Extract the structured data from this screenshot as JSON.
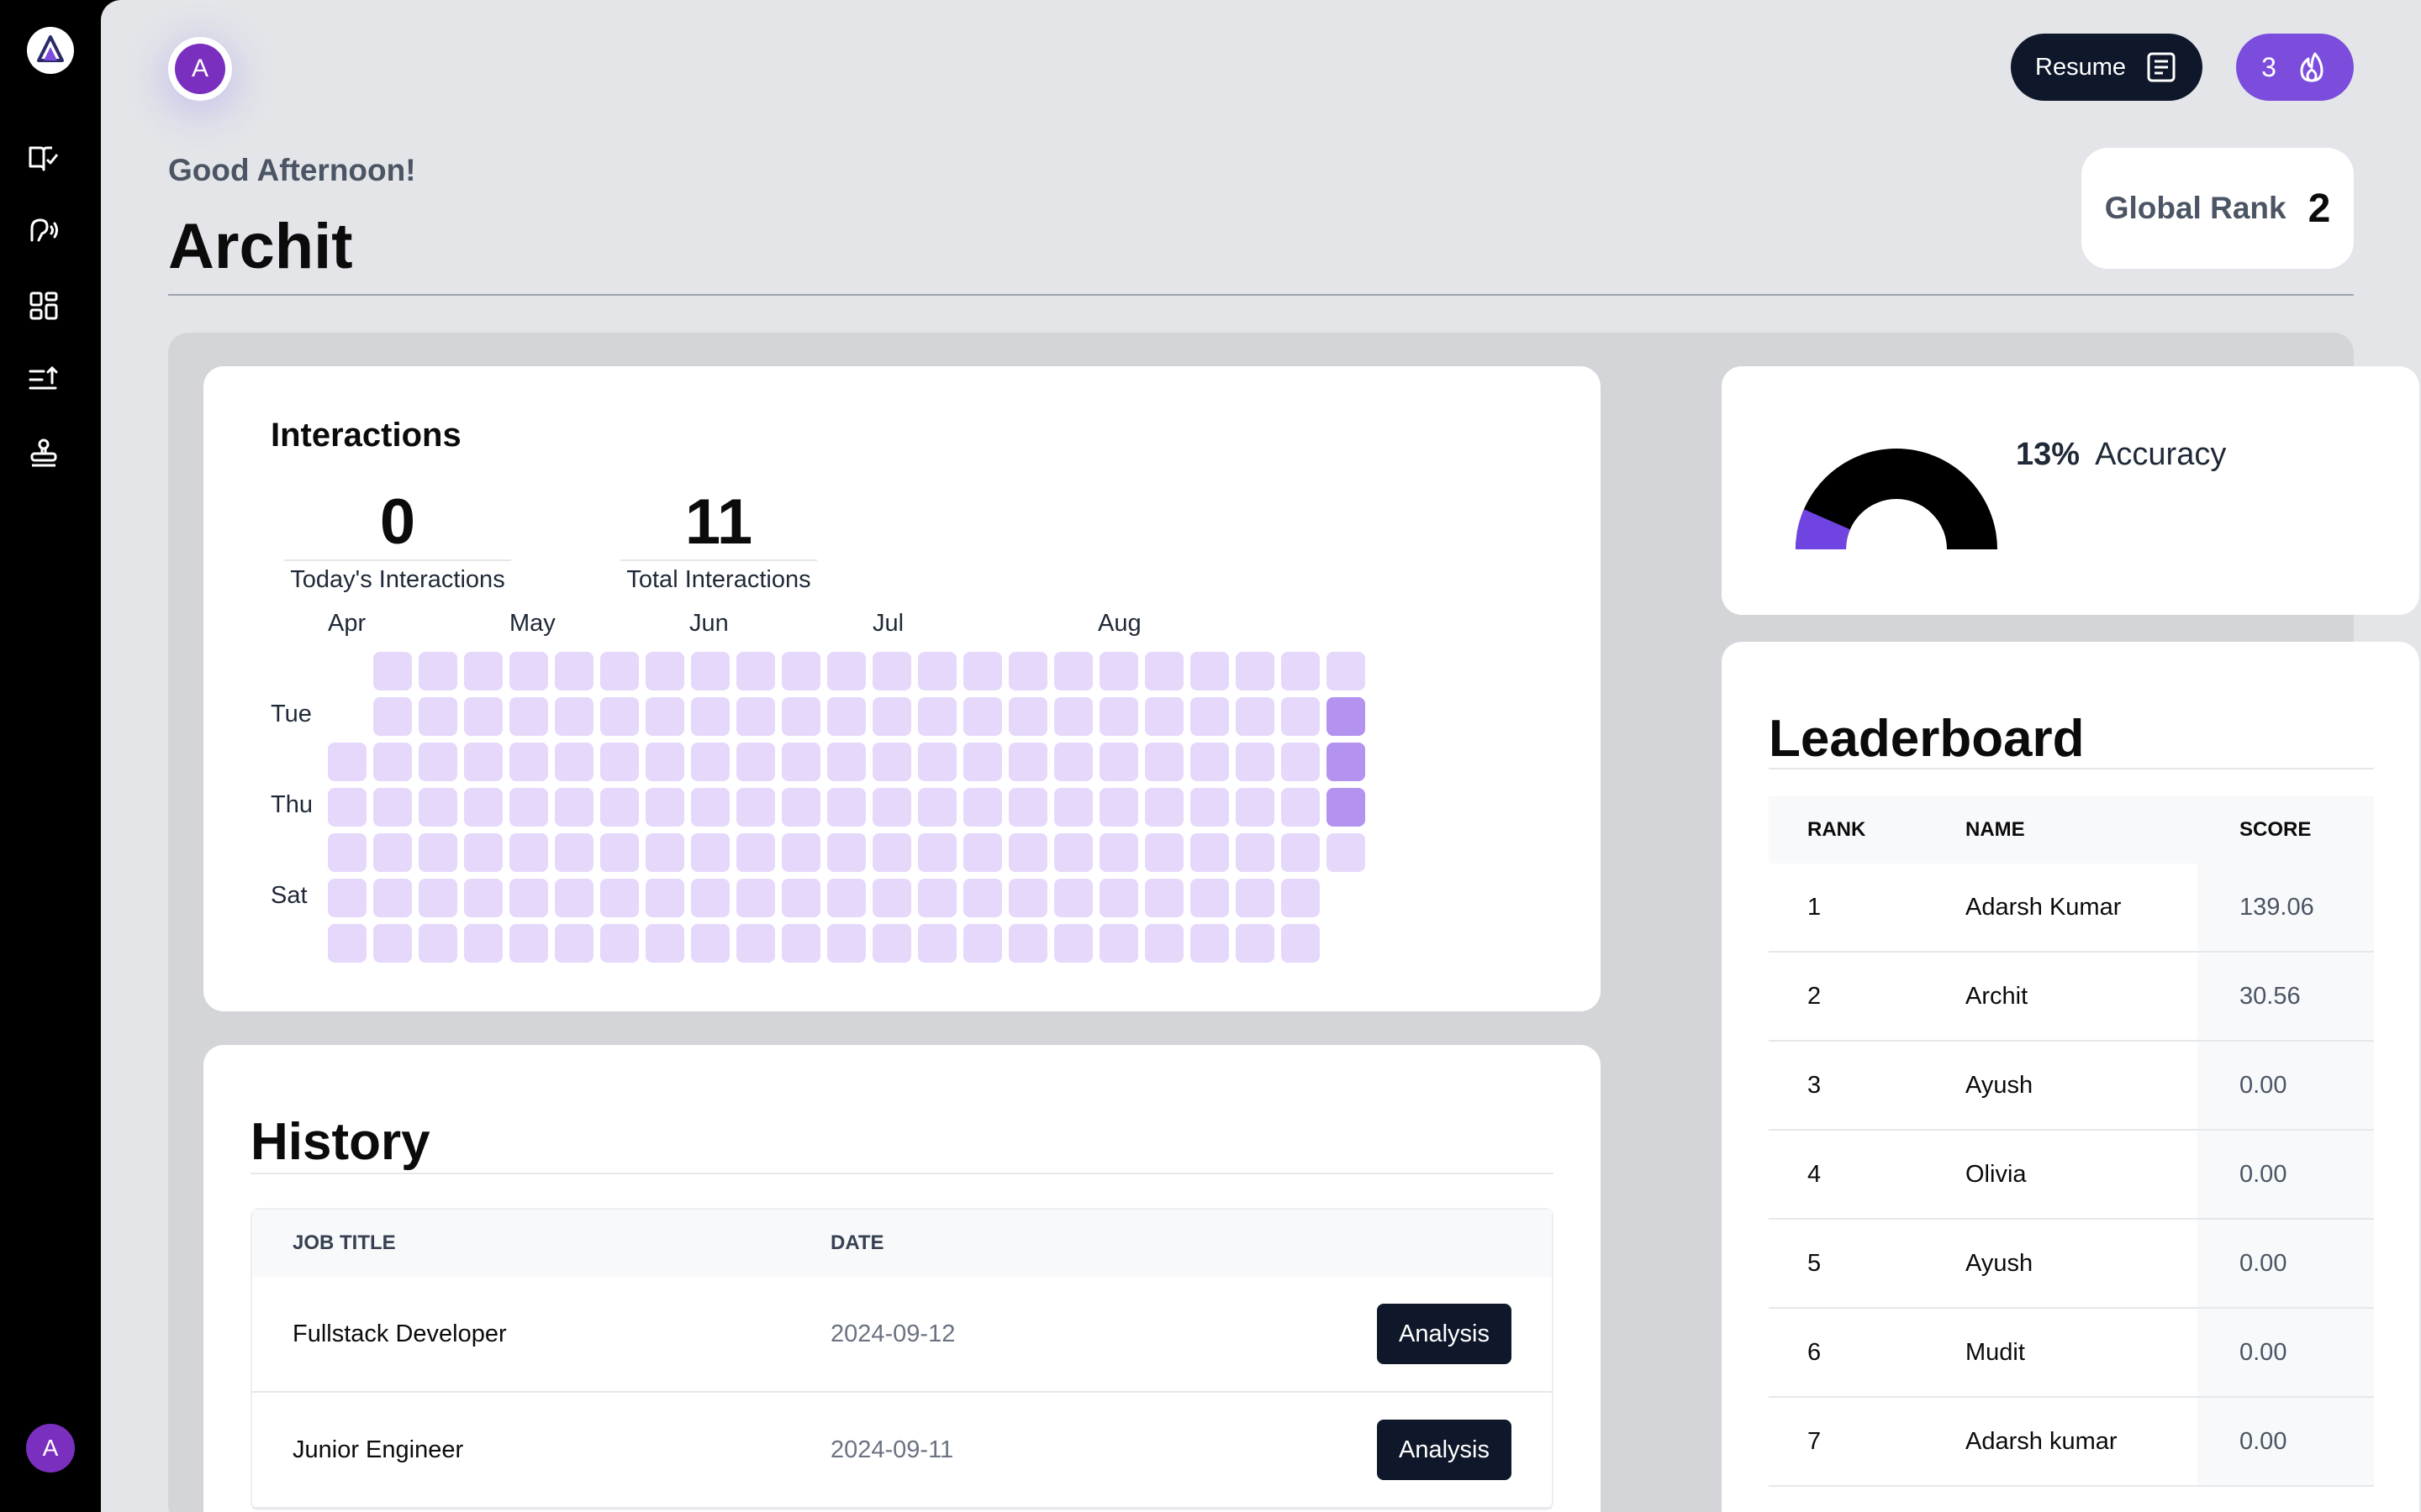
{
  "sidebar": {
    "logo_icon": "brand-logo-icon",
    "nav": [
      "book-check-icon",
      "speech-icon",
      "dashboard-grid-icon",
      "list-sort-icon",
      "stamp-icon"
    ],
    "user_initial": "A"
  },
  "header": {
    "avatar_initial": "A",
    "greeting": "Good Afternoon!",
    "user_name": "Archit",
    "resume_label": "Resume",
    "streak_count": "3",
    "global_rank_label": "Global Rank",
    "global_rank_value": "2"
  },
  "interactions": {
    "title": "Interactions",
    "today_value": "0",
    "today_label": "Today's Interactions",
    "total_value": "11",
    "total_label": "Total Interactions",
    "months": [
      "Apr",
      "May",
      "Jun",
      "Jul",
      "Aug"
    ],
    "day_labels": [
      "Tue",
      "Thu",
      "Sat"
    ],
    "active_cells": [
      "22-1",
      "22-2",
      "22-3"
    ]
  },
  "accuracy": {
    "percent": "13%",
    "label": "Accuracy",
    "value": 0.13,
    "colors": {
      "filled": "#7044e0",
      "remaining": "#000000"
    }
  },
  "leaderboard": {
    "title": "Leaderboard",
    "headers": {
      "rank": "RANK",
      "name": "NAME",
      "score": "SCORE"
    },
    "rows": [
      {
        "rank": "1",
        "name": "Adarsh Kumar",
        "score": "139.06"
      },
      {
        "rank": "2",
        "name": "Archit",
        "score": "30.56"
      },
      {
        "rank": "3",
        "name": "Ayush",
        "score": "0.00"
      },
      {
        "rank": "4",
        "name": "Olivia",
        "score": "0.00"
      },
      {
        "rank": "5",
        "name": "Ayush",
        "score": "0.00"
      },
      {
        "rank": "6",
        "name": "Mudit",
        "score": "0.00"
      },
      {
        "rank": "7",
        "name": "Adarsh kumar",
        "score": "0.00"
      }
    ]
  },
  "history": {
    "title": "History",
    "headers": {
      "job_title": "JOB TITLE",
      "date": "DATE"
    },
    "rows": [
      {
        "job_title": "Fullstack Developer",
        "date": "2024-09-12",
        "action": "Analysis"
      },
      {
        "job_title": "Junior Engineer",
        "date": "2024-09-11",
        "action": "Analysis"
      }
    ]
  },
  "colors": {
    "accent": "#7c4ddd",
    "dark": "#0f172a",
    "heat_empty": "#e6d8fb",
    "heat_active": "#b392f0"
  }
}
